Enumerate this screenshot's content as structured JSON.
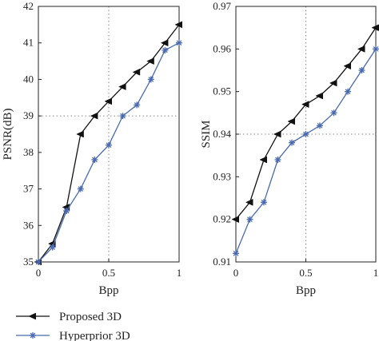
{
  "chart_data": [
    {
      "type": "line",
      "xlabel": "Bpp",
      "ylabel": "PSNR(dB)",
      "xlim": [
        0,
        1
      ],
      "ylim": [
        35,
        42
      ],
      "xticks": [
        "0",
        "0.5",
        "1"
      ],
      "yticks": [
        "35",
        "36",
        "37",
        "38",
        "39",
        "40",
        "41",
        "42"
      ],
      "grid": "dotted",
      "series": [
        {
          "name": "Proposed 3D",
          "marker": "left-triangle",
          "color": "#111111",
          "x": [
            0,
            0.1,
            0.2,
            0.3,
            0.4,
            0.5,
            0.6,
            0.7,
            0.8,
            0.9,
            1.0
          ],
          "values": [
            35.0,
            35.5,
            36.5,
            38.5,
            39.0,
            39.4,
            39.8,
            40.2,
            40.5,
            41.0,
            41.5
          ]
        },
        {
          "name": "Hyperprior 3D",
          "marker": "star",
          "color": "#4a6ab0",
          "x": [
            0,
            0.1,
            0.2,
            0.3,
            0.4,
            0.5,
            0.6,
            0.7,
            0.8,
            0.9,
            1.0
          ],
          "values": [
            35.0,
            35.4,
            36.4,
            37.0,
            37.8,
            38.2,
            39.0,
            39.3,
            40.0,
            40.8,
            41.0
          ]
        }
      ]
    },
    {
      "type": "line",
      "xlabel": "Bpp",
      "ylabel": "SSIM",
      "xlim": [
        0,
        1
      ],
      "ylim": [
        0.91,
        0.97
      ],
      "xticks": [
        "0",
        "0.5",
        "1"
      ],
      "yticks": [
        "0.91",
        "0.92",
        "0.93",
        "0.94",
        "0.95",
        "0.96",
        "0.97"
      ],
      "grid": "dotted",
      "series": [
        {
          "name": "Proposed 3D",
          "marker": "left-triangle",
          "color": "#111111",
          "x": [
            0,
            0.1,
            0.2,
            0.3,
            0.4,
            0.5,
            0.6,
            0.7,
            0.8,
            0.9,
            1.0
          ],
          "values": [
            0.92,
            0.924,
            0.934,
            0.94,
            0.943,
            0.947,
            0.949,
            0.952,
            0.956,
            0.96,
            0.965
          ]
        },
        {
          "name": "Hyperprior 3D",
          "marker": "star",
          "color": "#4a6ab0",
          "x": [
            0,
            0.1,
            0.2,
            0.3,
            0.4,
            0.5,
            0.6,
            0.7,
            0.8,
            0.9,
            1.0
          ],
          "values": [
            0.912,
            0.92,
            0.924,
            0.934,
            0.938,
            0.94,
            0.942,
            0.945,
            0.95,
            0.955,
            0.96
          ]
        }
      ]
    }
  ],
  "legend": {
    "placement": "bottom-left",
    "items": [
      {
        "label": "Proposed 3D",
        "marker": "left-triangle",
        "color": "#111111"
      },
      {
        "label": "Hyperprior 3D",
        "marker": "star",
        "color": "#4a6ab0"
      }
    ]
  }
}
